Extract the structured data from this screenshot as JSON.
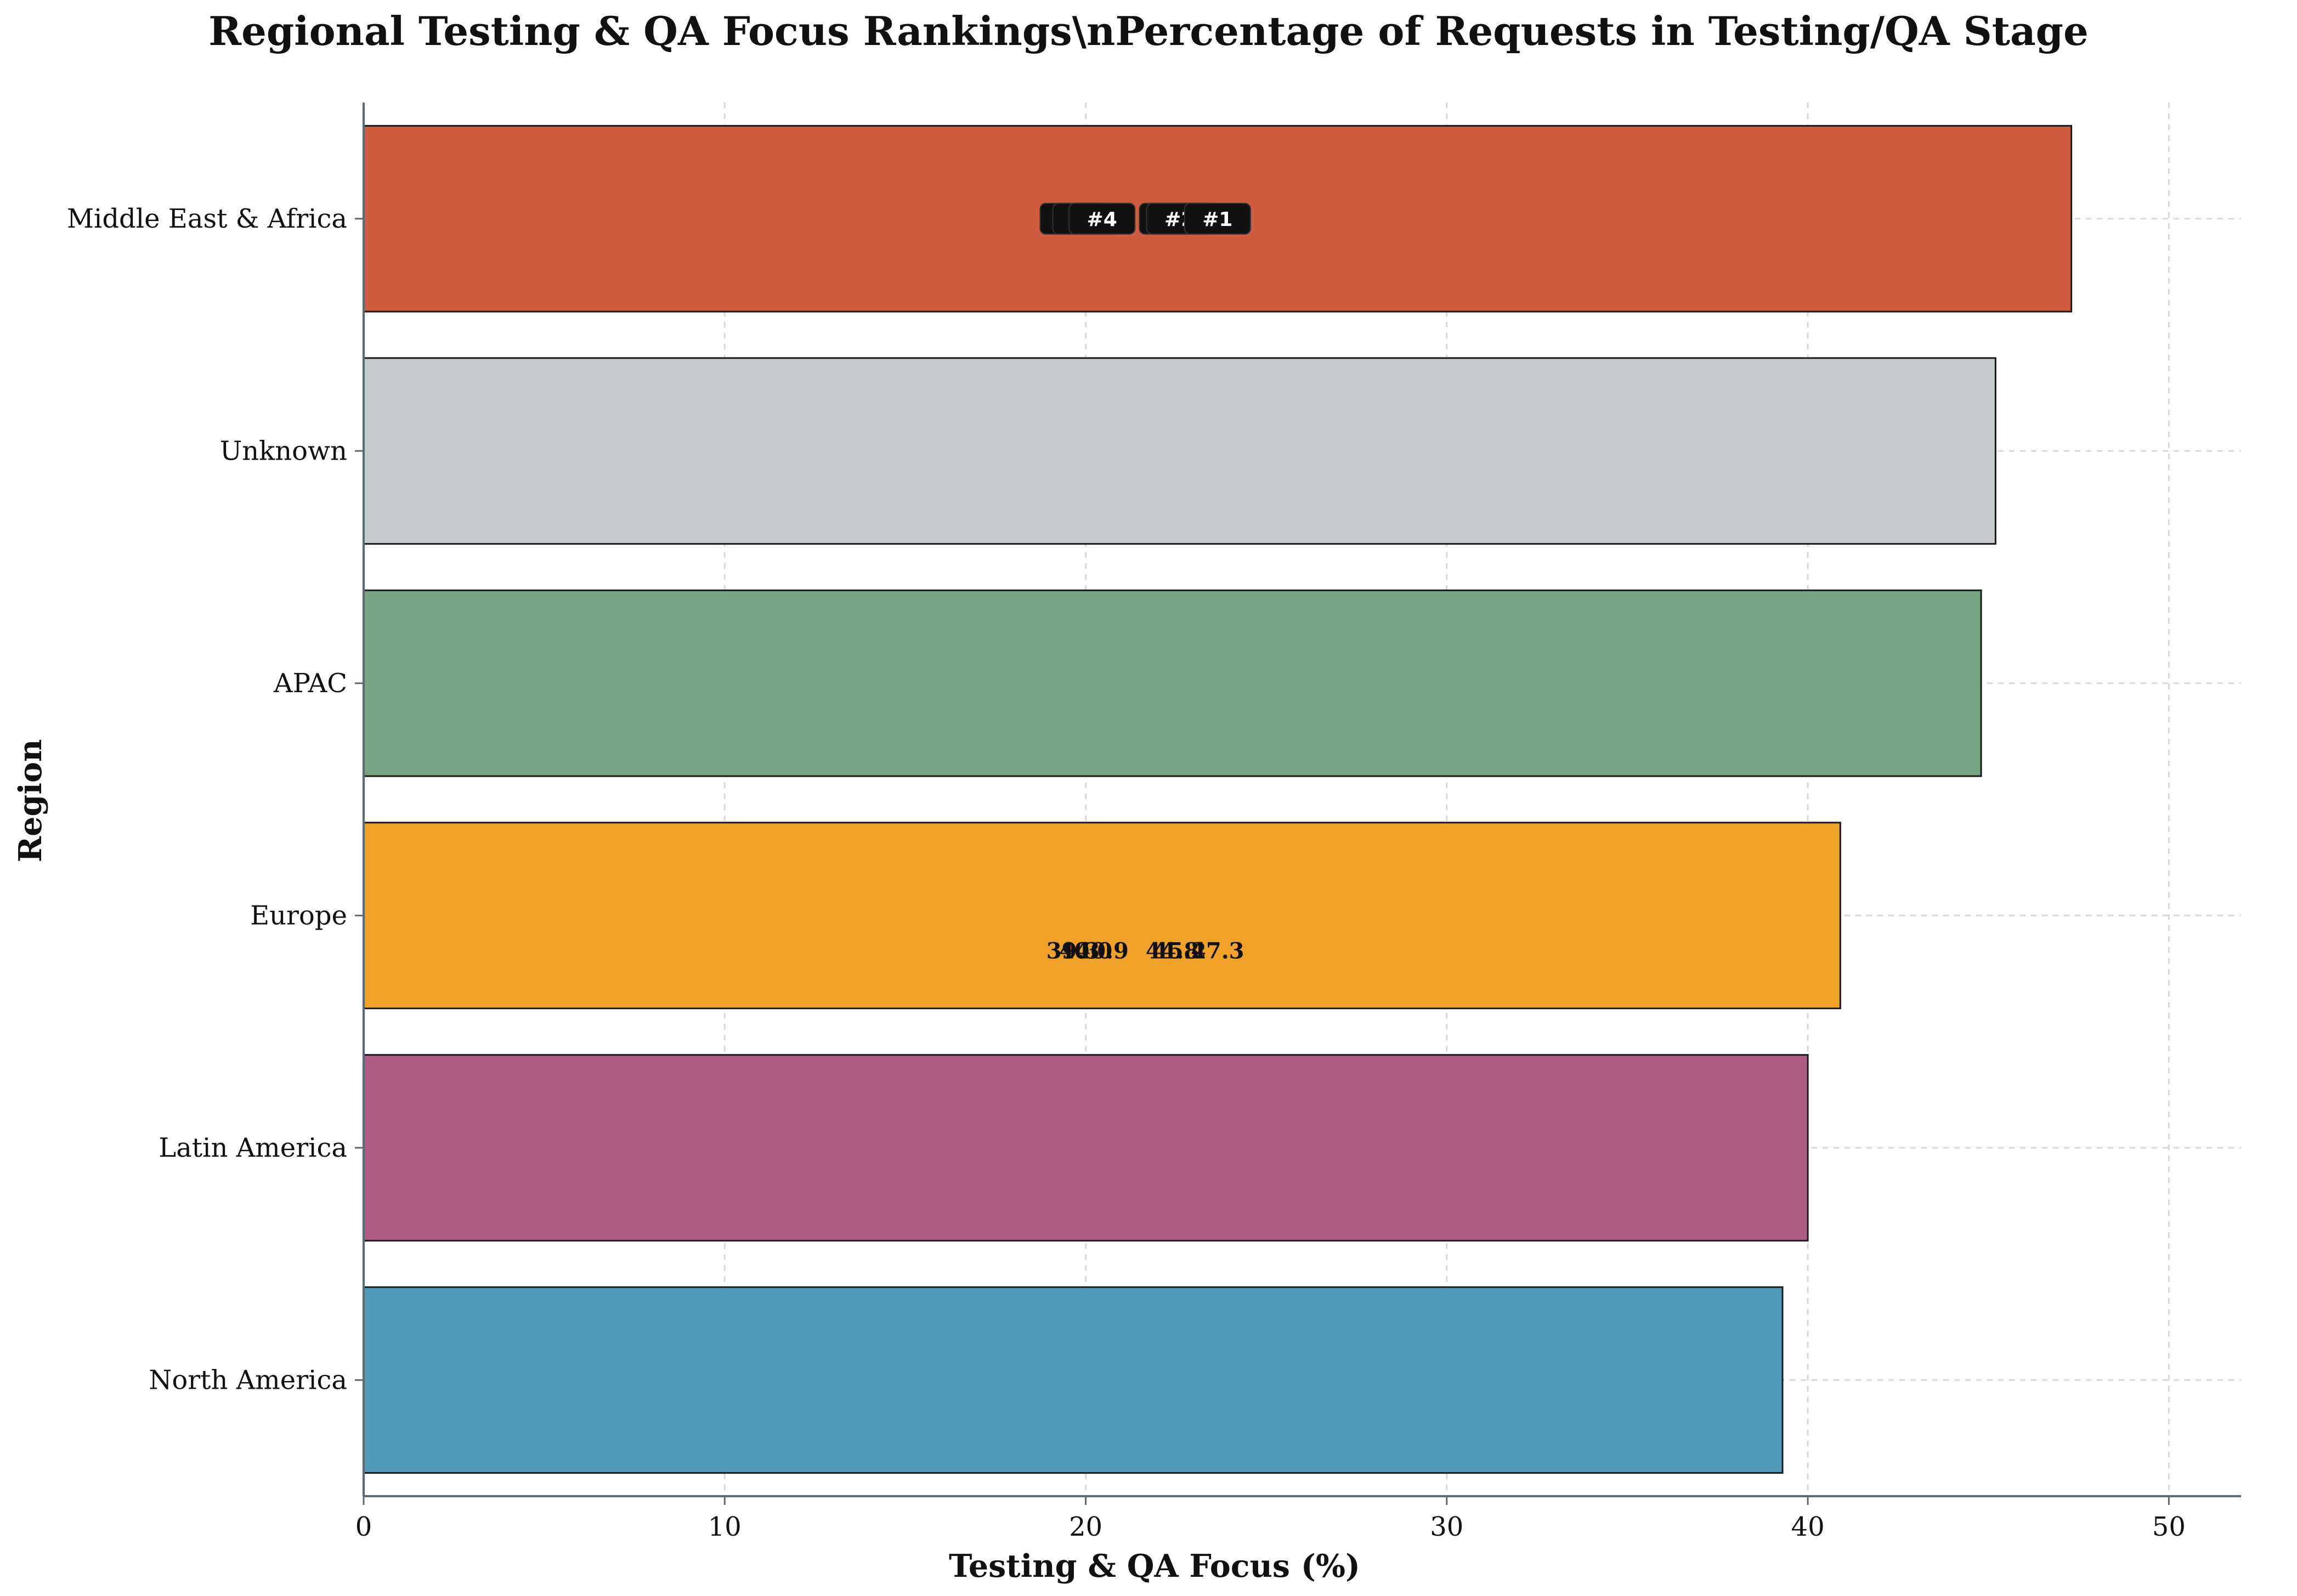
{
  "chart_data": {
    "type": "bar",
    "orientation": "horizontal",
    "title": "Regional Testing & QA Focus Rankings\\nPercentage of Requests in Testing/QA Stage",
    "xlabel": "Testing & QA Focus (%)",
    "ylabel": "Region",
    "xlim": [
      0,
      52
    ],
    "xticks": [
      0,
      10,
      20,
      30,
      40,
      50
    ],
    "grid": true,
    "categories": [
      "North America",
      "Latin America",
      "Europe",
      "APAC",
      "Unknown",
      "Middle East & Africa"
    ],
    "values": [
      39.3,
      40.0,
      40.9,
      44.8,
      45.2,
      47.3
    ],
    "colors": [
      "#4e9ab8",
      "#b05a86",
      "#f0a128",
      "#77a584",
      "#c6cbcd",
      "#cf5c3f"
    ],
    "rank_labels": [
      "#6",
      "#5",
      "#4",
      "#3",
      "#2",
      "#1"
    ],
    "value_labels": [
      "39.3",
      "40.0",
      "40.9",
      "44.8",
      "45.2",
      "47.3"
    ],
    "annotation_note": "Rank badges and value labels are drawn at x = value/2 on the top and middle bars respectively (overlapping)."
  }
}
